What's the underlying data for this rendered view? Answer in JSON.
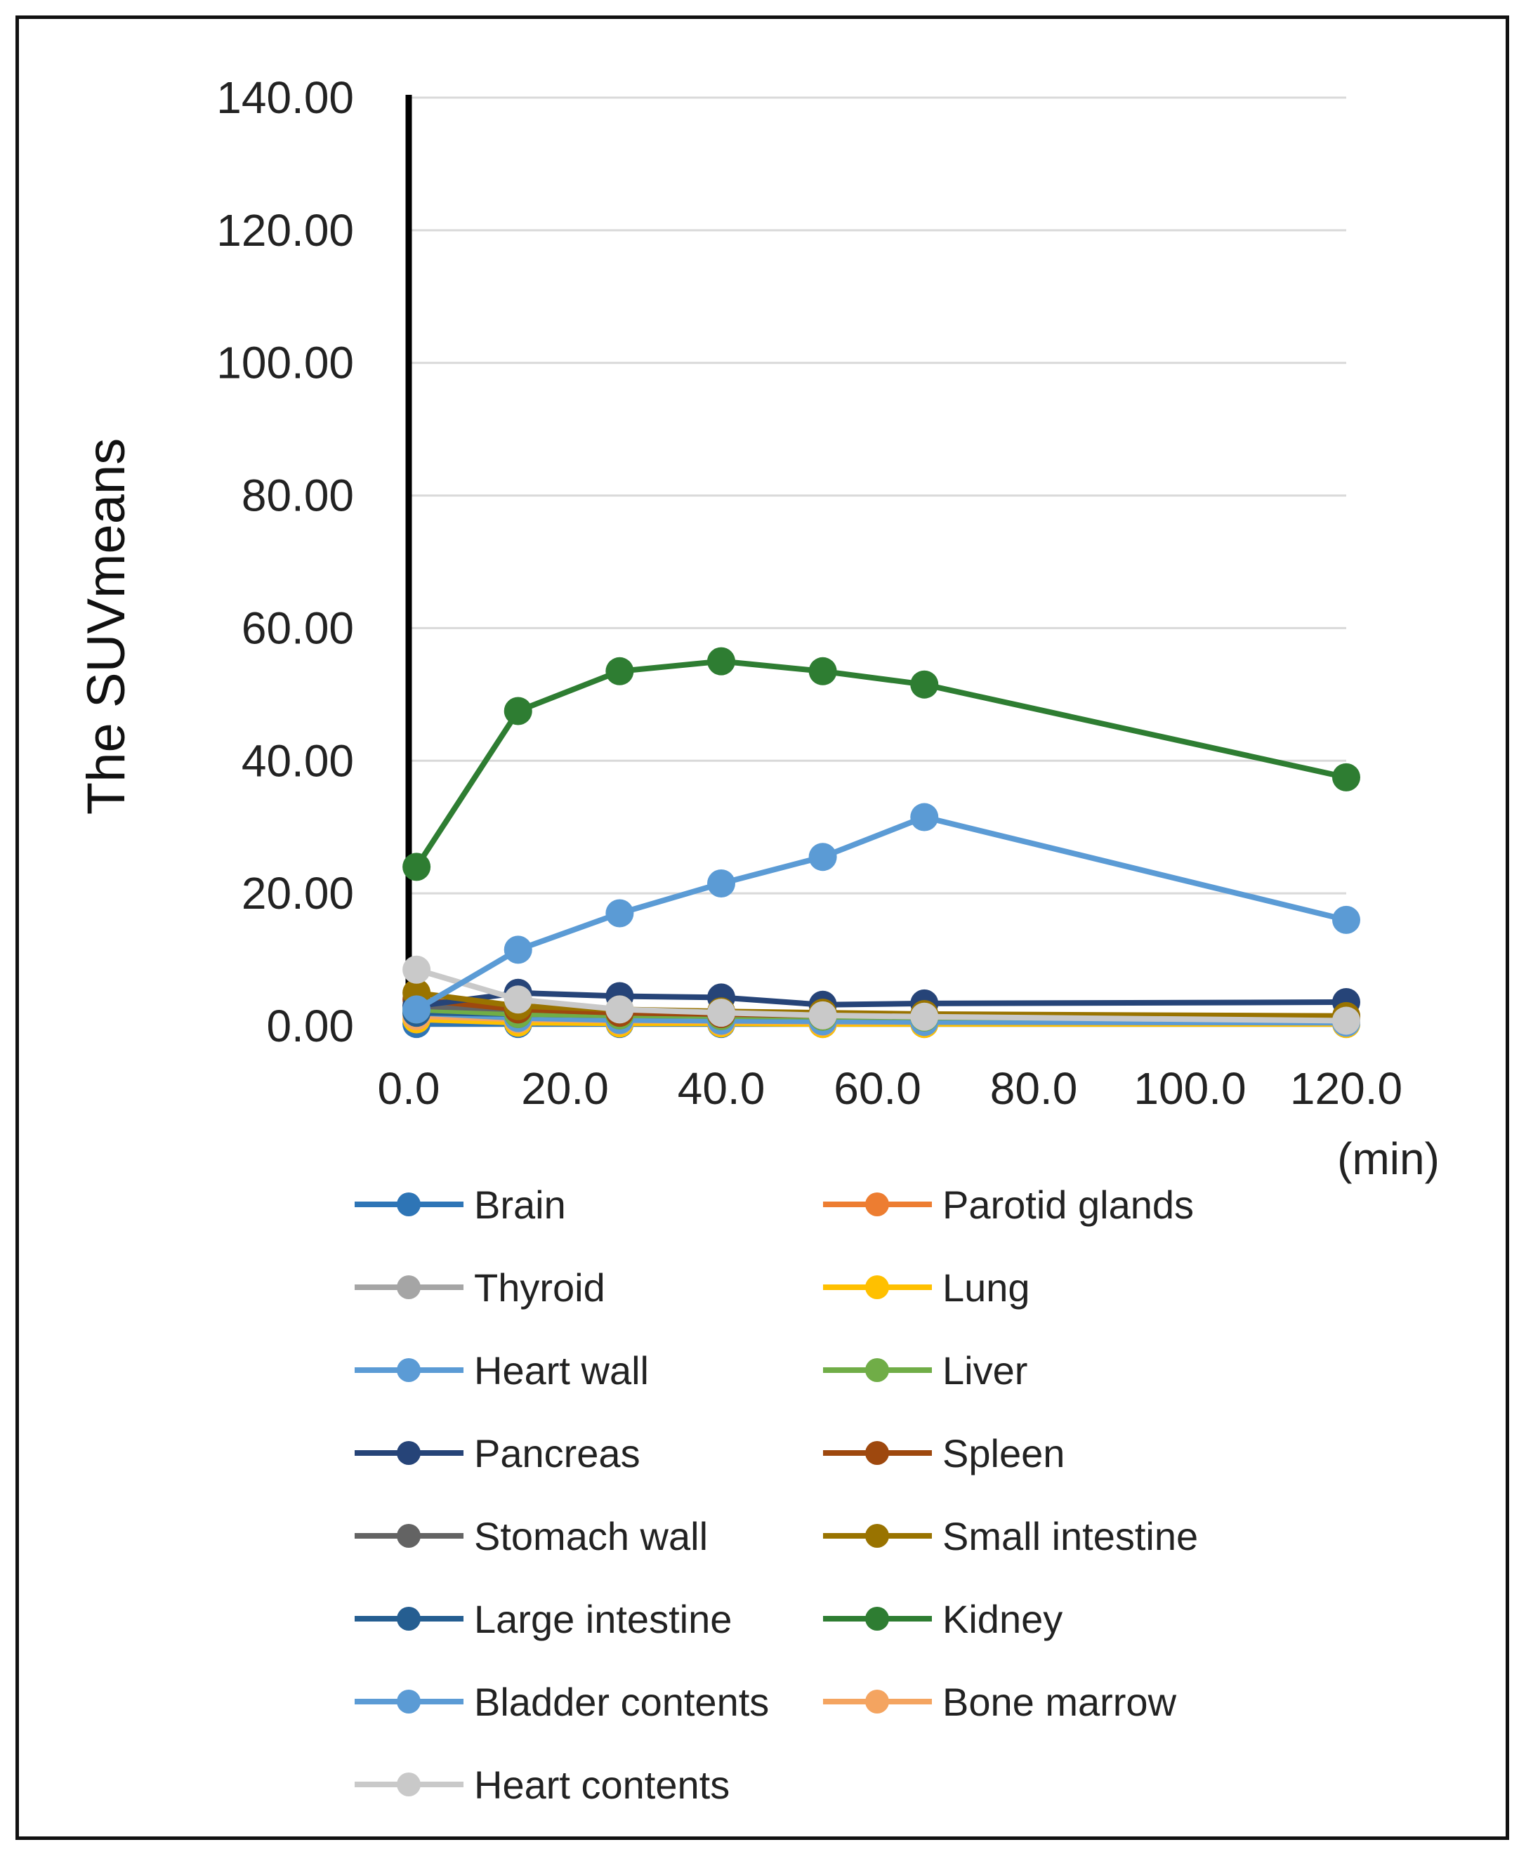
{
  "chart_data": {
    "type": "line",
    "title": "",
    "xlabel": "",
    "x_unit_label": "(min)",
    "ylabel": "The SUVmeans",
    "xlim": [
      0,
      120
    ],
    "ylim": [
      0,
      140
    ],
    "x_ticks": [
      "0.0",
      "20.0",
      "40.0",
      "60.0",
      "80.0",
      "100.0",
      "120.0"
    ],
    "y_ticks": [
      "0.00",
      "20.00",
      "40.00",
      "60.00",
      "80.00",
      "100.00",
      "120.00",
      "140.00"
    ],
    "x": [
      1,
      14,
      27,
      40,
      53,
      66,
      120
    ],
    "grid": true,
    "legend_position": "bottom",
    "series": [
      {
        "name": "Brain",
        "color": "#2e75b6",
        "values": [
          0.3,
          0.3,
          0.3,
          0.3,
          0.3,
          0.3,
          0.3
        ]
      },
      {
        "name": "Parotid glands",
        "color": "#ed7d31",
        "values": [
          2.0,
          1.6,
          1.4,
          1.3,
          1.2,
          1.2,
          1.0
        ]
      },
      {
        "name": "Thyroid",
        "color": "#a5a5a5",
        "values": [
          2.5,
          2.0,
          1.8,
          1.6,
          1.5,
          1.5,
          1.3
        ]
      },
      {
        "name": "Lung",
        "color": "#ffc000",
        "values": [
          1.0,
          0.5,
          0.4,
          0.4,
          0.3,
          0.3,
          0.3
        ]
      },
      {
        "name": "Heart wall",
        "color": "#5b9bd5",
        "values": [
          2.0,
          1.2,
          0.9,
          0.8,
          0.7,
          0.6,
          0.5
        ]
      },
      {
        "name": "Liver",
        "color": "#70ad47",
        "values": [
          2.5,
          1.8,
          1.6,
          1.5,
          1.4,
          1.3,
          1.1
        ]
      },
      {
        "name": "Pancreas",
        "color": "#264478",
        "values": [
          3.0,
          5.0,
          4.5,
          4.3,
          3.2,
          3.4,
          3.6
        ]
      },
      {
        "name": "Spleen",
        "color": "#9e480e",
        "values": [
          4.0,
          2.5,
          2.0,
          1.8,
          1.6,
          1.5,
          1.3
        ]
      },
      {
        "name": "Stomach wall",
        "color": "#636363",
        "values": [
          3.0,
          2.5,
          2.0,
          1.8,
          1.7,
          1.6,
          1.5
        ]
      },
      {
        "name": "Small intestine",
        "color": "#997300",
        "values": [
          5.0,
          3.0,
          2.5,
          2.2,
          2.0,
          1.8,
          1.5
        ]
      },
      {
        "name": "Large intestine",
        "color": "#255e91",
        "values": [
          2.0,
          1.8,
          1.6,
          1.5,
          1.4,
          1.3,
          1.2
        ]
      },
      {
        "name": "Kidney",
        "color": "#2e7d32",
        "values": [
          24.0,
          47.5,
          53.5,
          55.0,
          53.5,
          51.5,
          37.5
        ]
      },
      {
        "name": "Bladder contents",
        "color": "#5b9bd5",
        "values": [
          2.5,
          11.5,
          17.0,
          21.5,
          25.5,
          31.5,
          16.0
        ]
      },
      {
        "name": "Bone marrow",
        "color": "#f4a460",
        "values": [
          1.5,
          1.0,
          0.8,
          0.7,
          0.6,
          0.6,
          0.5
        ]
      },
      {
        "name": "Heart contents",
        "color": "#c9c9c9",
        "values": [
          8.5,
          4.0,
          2.5,
          2.0,
          1.6,
          1.4,
          0.8
        ]
      }
    ]
  }
}
